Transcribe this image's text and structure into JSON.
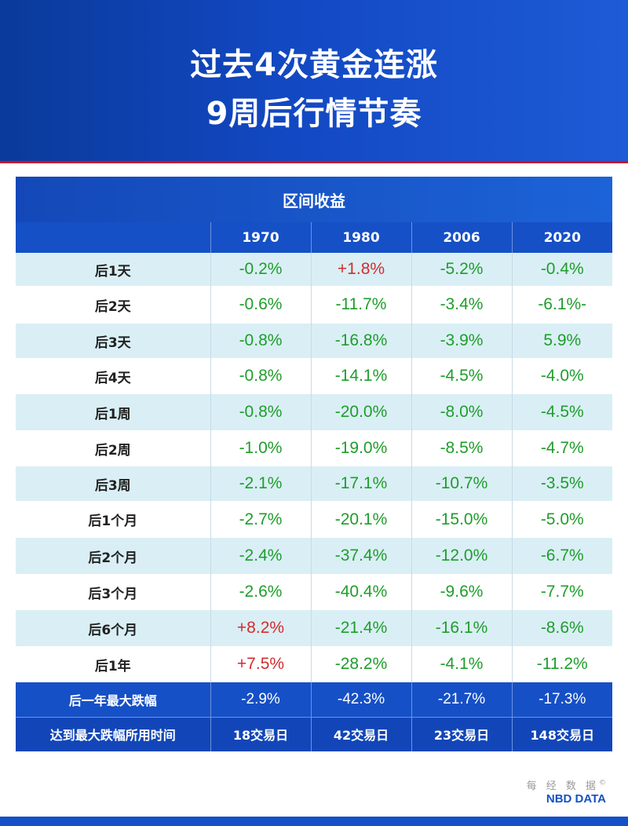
{
  "title": {
    "line1": "过去4次黄金连涨",
    "line2": "9周后行情节奏"
  },
  "chart_data": {
    "type": "table",
    "caption": "区间收益",
    "columns": [
      "1970",
      "1980",
      "2006",
      "2020"
    ],
    "rows": [
      {
        "label": "后1天",
        "values": [
          "-0.2%",
          "+1.8%",
          "-5.2%",
          "-0.4%"
        ]
      },
      {
        "label": "后2天",
        "values": [
          "-0.6%",
          "-11.7%",
          "-3.4%",
          "-6.1%-"
        ]
      },
      {
        "label": "后3天",
        "values": [
          "-0.8%",
          "-16.8%",
          "-3.9%",
          "5.9%"
        ]
      },
      {
        "label": "后4天",
        "values": [
          "-0.8%",
          "-14.1%",
          "-4.5%",
          "-4.0%"
        ]
      },
      {
        "label": "后1周",
        "values": [
          "-0.8%",
          "-20.0%",
          "-8.0%",
          "-4.5%"
        ]
      },
      {
        "label": "后2周",
        "values": [
          "-1.0%",
          "-19.0%",
          "-8.5%",
          "-4.7%"
        ]
      },
      {
        "label": "后3周",
        "values": [
          "-2.1%",
          "-17.1%",
          "-10.7%",
          "-3.5%"
        ]
      },
      {
        "label": "后1个月",
        "values": [
          "-2.7%",
          "-20.1%",
          "-15.0%",
          "-5.0%"
        ]
      },
      {
        "label": "后2个月",
        "values": [
          "-2.4%",
          "-37.4%",
          "-12.0%",
          "-6.7%"
        ]
      },
      {
        "label": "后3个月",
        "values": [
          "-2.6%",
          "-40.4%",
          "-9.6%",
          "-7.7%"
        ]
      },
      {
        "label": "后6个月",
        "values": [
          "+8.2%",
          "-21.4%",
          "-16.1%",
          "-8.6%"
        ]
      },
      {
        "label": "后1年",
        "values": [
          "+7.5%",
          "-28.2%",
          "-4.1%",
          "-11.2%"
        ]
      }
    ],
    "value_colors": {
      "negative": "#1f9d2c",
      "positive": "#d62b2b"
    },
    "value_color_overrides": [
      {
        "row": 2,
        "col": 3,
        "color": "negative"
      }
    ],
    "summary_rows": [
      {
        "label": "后一年最大跌幅",
        "values": [
          "-2.9%",
          "-42.3%",
          "-21.7%",
          "-17.3%"
        ]
      },
      {
        "label": "达到最大跌幅所用时间",
        "values": [
          "18交易日",
          "42交易日",
          "23交易日",
          "148交易日"
        ]
      }
    ]
  },
  "brand": {
    "cn": "每 经 数 据",
    "mark": "©",
    "en": "NBD DATA"
  },
  "colors": {
    "header_blue": "#1248c2",
    "accent_red": "#c8102e",
    "row_tint": "#d9eff5"
  }
}
